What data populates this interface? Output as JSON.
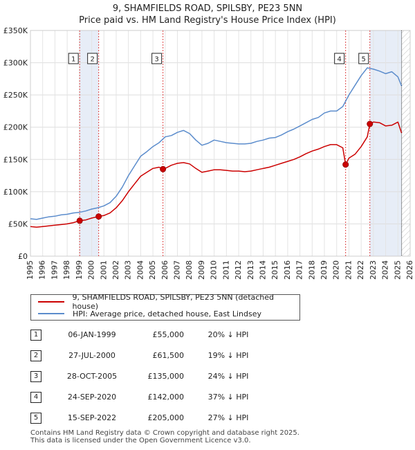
{
  "title": {
    "line1": "9, SHAMFIELDS ROAD, SPILSBY, PE23 5NN",
    "line2": "Price paid vs. HM Land Registry's House Price Index (HPI)"
  },
  "legend": {
    "property_label": "9, SHAMFIELDS ROAD, SPILSBY, PE23 5NN (detached house)",
    "hpi_label": "HPI: Average price, detached house, East Lindsey"
  },
  "sales": [
    {
      "num": "1",
      "date": "06-JAN-1999",
      "price": "£55,000",
      "pct": "20% ↓ HPI"
    },
    {
      "num": "2",
      "date": "27-JUL-2000",
      "price": "£61,500",
      "pct": "19% ↓ HPI"
    },
    {
      "num": "3",
      "date": "28-OCT-2005",
      "price": "£135,000",
      "pct": "24% ↓ HPI"
    },
    {
      "num": "4",
      "date": "24-SEP-2020",
      "price": "£142,000",
      "pct": "37% ↓ HPI"
    },
    {
      "num": "5",
      "date": "15-SEP-2022",
      "price": "£205,000",
      "pct": "27% ↓ HPI"
    }
  ],
  "footer": {
    "line1": "Contains HM Land Registry data © Crown copyright and database right 2025.",
    "line2": "This data is licensed under the Open Government Licence v3.0."
  },
  "colors": {
    "property": "#cc0000",
    "hpi": "#5b8ccc",
    "shade": "#dde6f4",
    "hatch": "#bbbbbb",
    "vline": "#dd4444"
  },
  "chart_data": {
    "type": "line",
    "title": "Price paid vs. HM Land Registry's House Price Index (HPI)",
    "xlabel": "",
    "ylabel": "",
    "xlim": [
      1995,
      2026
    ],
    "ylim": [
      0,
      350000
    ],
    "x_ticks": [
      1995,
      1996,
      1997,
      1998,
      1999,
      2000,
      2001,
      2002,
      2003,
      2004,
      2005,
      2006,
      2007,
      2008,
      2009,
      2010,
      2011,
      2012,
      2013,
      2014,
      2015,
      2016,
      2017,
      2018,
      2019,
      2020,
      2021,
      2022,
      2023,
      2024,
      2025,
      2026
    ],
    "y_ticks": [
      0,
      50000,
      100000,
      150000,
      200000,
      250000,
      300000,
      350000
    ],
    "y_tick_labels": [
      "£0",
      "£50K",
      "£100K",
      "£150K",
      "£200K",
      "£250K",
      "£300K",
      "£350K"
    ],
    "grid": true,
    "data_ends": 2025.3,
    "shaded_ranges": [
      [
        1999.02,
        2000.57
      ],
      [
        2022.71,
        2025.3
      ]
    ],
    "series": [
      {
        "name": "HPI: Average price, detached house, East Lindsey",
        "color": "#5b8ccc",
        "x": [
          1995.0,
          1995.5,
          1996.0,
          1996.5,
          1997.0,
          1997.5,
          1998.0,
          1998.5,
          1999.0,
          1999.5,
          2000.0,
          2000.5,
          2001.0,
          2001.5,
          2002.0,
          2002.5,
          2003.0,
          2003.5,
          2004.0,
          2004.5,
          2005.0,
          2005.5,
          2006.0,
          2006.5,
          2007.0,
          2007.5,
          2008.0,
          2008.5,
          2009.0,
          2009.5,
          2010.0,
          2010.5,
          2011.0,
          2011.5,
          2012.0,
          2012.5,
          2013.0,
          2013.5,
          2014.0,
          2014.5,
          2015.0,
          2015.5,
          2016.0,
          2016.5,
          2017.0,
          2017.5,
          2018.0,
          2018.5,
          2019.0,
          2019.5,
          2020.0,
          2020.5,
          2021.0,
          2021.5,
          2022.0,
          2022.5,
          2023.0,
          2023.5,
          2024.0,
          2024.5,
          2025.0,
          2025.3
        ],
        "y": [
          58000,
          57000,
          59000,
          61000,
          62000,
          64000,
          65000,
          67000,
          68000,
          70000,
          73000,
          75000,
          78000,
          83000,
          93000,
          107000,
          125000,
          140000,
          155000,
          162000,
          170000,
          176000,
          185000,
          187000,
          192000,
          195000,
          190000,
          180000,
          172000,
          175000,
          180000,
          178000,
          176000,
          175000,
          174000,
          174000,
          175000,
          178000,
          180000,
          183000,
          184000,
          188000,
          193000,
          197000,
          202000,
          207000,
          212000,
          215000,
          222000,
          225000,
          225000,
          232000,
          250000,
          265000,
          280000,
          292000,
          290000,
          287000,
          283000,
          286000,
          278000,
          264000
        ]
      },
      {
        "name": "9, SHAMFIELDS ROAD, SPILSBY, PE23 5NN (detached house)",
        "color": "#cc0000",
        "x": [
          1995.0,
          1995.5,
          1996.0,
          1996.5,
          1997.0,
          1997.5,
          1998.0,
          1998.5,
          1999.02,
          1999.5,
          2000.0,
          2000.57,
          2001.0,
          2001.5,
          2002.0,
          2002.5,
          2003.0,
          2003.5,
          2004.0,
          2004.5,
          2005.0,
          2005.5,
          2005.82,
          2006.0,
          2006.5,
          2007.0,
          2007.5,
          2008.0,
          2008.5,
          2009.0,
          2009.5,
          2010.0,
          2010.5,
          2011.0,
          2011.5,
          2012.0,
          2012.5,
          2013.0,
          2013.5,
          2014.0,
          2014.5,
          2015.0,
          2015.5,
          2016.0,
          2016.5,
          2017.0,
          2017.5,
          2018.0,
          2018.5,
          2019.0,
          2019.5,
          2020.0,
          2020.5,
          2020.73,
          2021.0,
          2021.5,
          2022.0,
          2022.5,
          2022.71,
          2023.0,
          2023.5,
          2024.0,
          2024.5,
          2025.0,
          2025.3
        ],
        "y": [
          46000,
          45000,
          46000,
          47000,
          48000,
          49000,
          50000,
          52000,
          55000,
          56000,
          59000,
          61500,
          63000,
          67000,
          75000,
          86000,
          100000,
          112000,
          124000,
          130000,
          136000,
          138000,
          135000,
          136000,
          141000,
          144000,
          145000,
          143000,
          136000,
          130000,
          132000,
          134000,
          134000,
          133000,
          132000,
          132000,
          131000,
          132000,
          134000,
          136000,
          138000,
          141000,
          144000,
          147000,
          150000,
          154000,
          159000,
          163000,
          166000,
          170000,
          173000,
          173000,
          168000,
          142000,
          152000,
          158000,
          170000,
          185000,
          205000,
          208000,
          207000,
          202000,
          203000,
          208000,
          191000
        ]
      }
    ],
    "sales": [
      {
        "num": "1",
        "x": 1999.02,
        "y": 55000
      },
      {
        "num": "2",
        "x": 2000.57,
        "y": 61500
      },
      {
        "num": "3",
        "x": 2005.82,
        "y": 135000
      },
      {
        "num": "4",
        "x": 2020.73,
        "y": 142000
      },
      {
        "num": "5",
        "x": 2022.71,
        "y": 205000
      }
    ]
  }
}
